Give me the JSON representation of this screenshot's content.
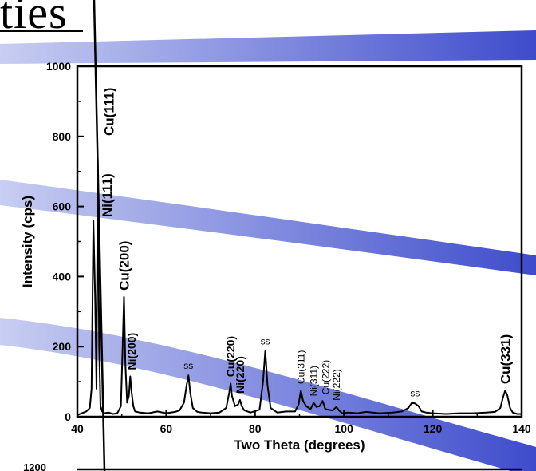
{
  "slide": {
    "title_fragment": "ties"
  },
  "chart_data": {
    "type": "line",
    "xlabel": "Two Theta (degrees)",
    "ylabel": "Intensity (cps)",
    "xlim": [
      40,
      140
    ],
    "ylim": [
      0,
      1000
    ],
    "xticks": [
      40,
      60,
      80,
      100,
      120,
      140
    ],
    "yticks": [
      0,
      200,
      400,
      600,
      800,
      1000
    ],
    "second_axis_visible_tick": "1200",
    "grid": false,
    "legend": "none",
    "series": [
      {
        "line_color": "#000000",
        "x": [
          40,
          41,
          42,
          42.8,
          43.2,
          43.6,
          44.0,
          44.3,
          44.6,
          44.9,
          45.2,
          45.6,
          46.0,
          47,
          48,
          49,
          49.8,
          50.2,
          50.5,
          50.8,
          51.2,
          51.6,
          51.9,
          52.2,
          52.6,
          53,
          54,
          56,
          58,
          60,
          62,
          63,
          64,
          64.6,
          65.0,
          65.4,
          66,
          67,
          68,
          70,
          72,
          73.5,
          74.2,
          74.5,
          74.8,
          75.5,
          76.2,
          76.6,
          77.0,
          77.6,
          79,
          81,
          81.8,
          82.3,
          82.8,
          83.5,
          85,
          87,
          89,
          89.8,
          90.3,
          90.8,
          91.5,
          92.5,
          93.2,
          93.8,
          94.5,
          95.2,
          95.8,
          96.5,
          97.5,
          98.3,
          98.9,
          99.6,
          101,
          103,
          105,
          108,
          111,
          113,
          114.5,
          115.3,
          116.0,
          116.8,
          117.5,
          118.5,
          120,
          123,
          126,
          129,
          132,
          134,
          135.2,
          135.8,
          136.3,
          136.8,
          137.4,
          138,
          139,
          140
        ],
        "y": [
          5,
          10,
          15,
          25,
          80,
          560,
          340,
          80,
          735,
          200,
          30,
          15,
          10,
          12,
          8,
          10,
          30,
          200,
          342,
          150,
          40,
          60,
          115,
          70,
          30,
          15,
          12,
          10,
          15,
          10,
          14,
          18,
          40,
          90,
          118,
          70,
          25,
          14,
          12,
          10,
          12,
          25,
          70,
          95,
          60,
          30,
          35,
          48,
          30,
          18,
          12,
          20,
          100,
          188,
          90,
          25,
          12,
          15,
          15,
          35,
          75,
          45,
          30,
          22,
          40,
          28,
          30,
          45,
          22,
          20,
          18,
          28,
          18,
          10,
          12,
          10,
          14,
          10,
          12,
          15,
          25,
          40,
          38,
          30,
          15,
          12,
          10,
          8,
          10,
          10,
          12,
          14,
          25,
          55,
          75,
          60,
          25,
          12,
          8,
          8
        ]
      }
    ],
    "annotations": [
      {
        "text": "Cu(111)",
        "x": 44.6,
        "rotated": true,
        "bold": true,
        "size": "large"
      },
      {
        "text": "Ni(111)",
        "x": 44.9,
        "rotated": true,
        "bold": true,
        "size": "large"
      },
      {
        "text": "Cu(200)",
        "x": 50.5,
        "rotated": true,
        "bold": true,
        "size": "large"
      },
      {
        "text": "Ni(200)",
        "x": 52.2,
        "rotated": true,
        "bold": true,
        "size": "medium"
      },
      {
        "text": "ss",
        "x": 65.0,
        "rotated": false,
        "bold": false,
        "size": "small"
      },
      {
        "text": "Cu(220)",
        "x": 74.5,
        "rotated": true,
        "bold": true,
        "size": "medium"
      },
      {
        "text": "Ni(220)",
        "x": 76.6,
        "rotated": true,
        "bold": true,
        "size": "medium"
      },
      {
        "text": "ss",
        "x": 82.3,
        "rotated": false,
        "bold": false,
        "size": "small"
      },
      {
        "text": "Cu(311)",
        "x": 90.3,
        "rotated": true,
        "bold": false,
        "size": "small"
      },
      {
        "text": "Ni(311)",
        "x": 93.2,
        "rotated": true,
        "bold": false,
        "size": "small"
      },
      {
        "text": "Cu(222)",
        "x": 95.2,
        "rotated": true,
        "bold": false,
        "size": "small"
      },
      {
        "text": "Ni(222)",
        "x": 98.3,
        "rotated": true,
        "bold": false,
        "size": "small"
      },
      {
        "text": "ss",
        "x": 116.0,
        "rotated": false,
        "bold": false,
        "size": "small"
      },
      {
        "text": "Cu(331)",
        "x": 136.3,
        "rotated": true,
        "bold": true,
        "size": "large"
      }
    ],
    "decoration": {
      "band_colors": {
        "light": "#b8c0ee",
        "dark": "#3e4ccc"
      }
    }
  }
}
